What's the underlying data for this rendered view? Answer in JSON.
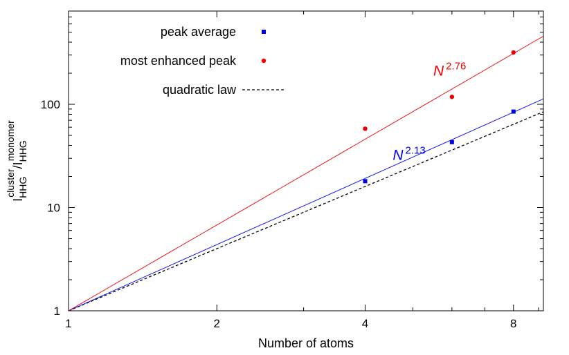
{
  "chart_data": {
    "type": "scatter",
    "xlabel": "Number of atoms",
    "ylabel": {
      "main": "I",
      "num_sub": "HHG",
      "num_sup": "cluster",
      "slash": "/",
      "den_main": "I",
      "den_sub": "HHG",
      "den_sup": "monomer"
    },
    "x_scale": "log2",
    "y_scale": "log10",
    "xlim": [
      1,
      9.2
    ],
    "ylim": [
      1,
      800
    ],
    "x_ticks": [
      1,
      2,
      4,
      8
    ],
    "x_tick_labels": [
      "1",
      "2",
      "4",
      "8"
    ],
    "y_ticks": [
      1,
      10,
      100
    ],
    "y_tick_labels": [
      "1",
      "10",
      "100"
    ],
    "grid": false,
    "legend_position": "top-left",
    "series": [
      {
        "name": "peak average",
        "marker": "square",
        "color": "#0000ee",
        "x": [
          4,
          6,
          8
        ],
        "y": [
          18,
          43,
          85
        ]
      },
      {
        "name": "most enhanced peak",
        "marker": "circle",
        "color": "#ee0000",
        "x": [
          4,
          6,
          8
        ],
        "y": [
          58,
          118,
          318
        ]
      }
    ],
    "lines": [
      {
        "name": "quadratic law",
        "exponent": 2,
        "style": "dashed",
        "color": "#000000",
        "in_legend": true
      },
      {
        "exponent": 2.13,
        "style": "solid",
        "color": "#0000ee",
        "in_legend": false
      },
      {
        "exponent": 2.76,
        "style": "solid",
        "color": "#ee0000",
        "in_legend": false
      }
    ],
    "annotations": [
      {
        "base": "N",
        "exponent": "2.76",
        "color": "#ee0000",
        "x": 5.5,
        "y": 190
      },
      {
        "base": "N",
        "exponent": "2.13",
        "color": "#0000ee",
        "x": 4.55,
        "y": 29
      }
    ]
  }
}
